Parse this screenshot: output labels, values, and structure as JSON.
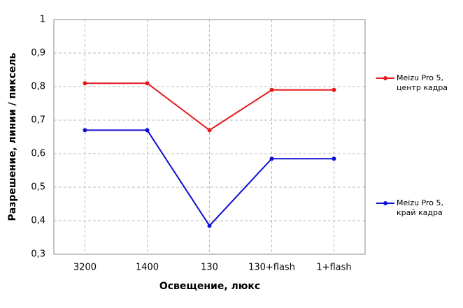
{
  "chart_data": {
    "type": "line",
    "x_label": "Освещение, люкс",
    "y_label": "Разрешение, линии / пиксель",
    "categories": [
      "3200",
      "1400",
      "130",
      "130+flash",
      "1+flash"
    ],
    "series": [
      {
        "name": "Meizu Pro 5, центр кадра",
        "color": "#e31a1c",
        "values": [
          0.81,
          0.81,
          0.67,
          0.79,
          0.79
        ]
      },
      {
        "name": "Meizu Pro 5, край кадра",
        "color": "#1010d0",
        "values": [
          0.67,
          0.67,
          0.385,
          0.585,
          0.585
        ]
      }
    ],
    "ylim": [
      0.3,
      1
    ],
    "yticks": [
      {
        "value": 0.3,
        "label": "0,3"
      },
      {
        "value": 0.4,
        "label": "0,4"
      },
      {
        "value": 0.5,
        "label": "0,5"
      },
      {
        "value": 0.6,
        "label": "0,6"
      },
      {
        "value": 0.7,
        "label": "0,7"
      },
      {
        "value": 0.8,
        "label": "0,8"
      },
      {
        "value": 0.9,
        "label": "0,9"
      },
      1
    ],
    "grid": true,
    "legend": "right"
  }
}
